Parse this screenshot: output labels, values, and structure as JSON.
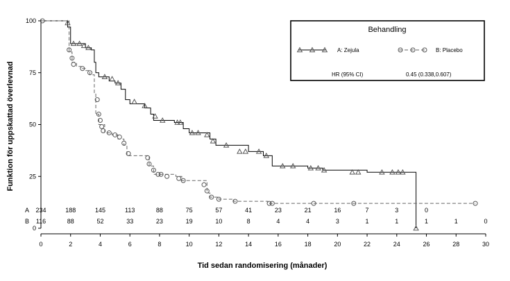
{
  "chart_data": {
    "type": "line",
    "subtype": "kaplan-meier",
    "xlabel": "Tid sedan randomisering (månader)",
    "ylabel": "Funktion för uppskattad överlevnad",
    "xlim": [
      0,
      30
    ],
    "ylim": [
      0,
      100
    ],
    "x_ticks": [
      0,
      2,
      4,
      6,
      8,
      10,
      12,
      14,
      16,
      18,
      20,
      22,
      24,
      26,
      28,
      30
    ],
    "y_ticks": [
      0,
      25,
      50,
      75,
      100
    ],
    "grid": false,
    "legend": {
      "title": "Behandling",
      "position": "top-right",
      "hr_label": "HR (95% CI)",
      "hr_value": "0.45 (0.338,0.607)"
    },
    "colors": {
      "line": "#000000",
      "censor_marker": "#555555",
      "axis": "#000000"
    },
    "series": [
      {
        "name": "A: Zejula",
        "style": "solid",
        "marker": "triangle",
        "x": [
          0,
          1.5,
          1.8,
          2.0,
          2.5,
          3.0,
          3.4,
          3.6,
          3.7,
          3.9,
          4.2,
          4.6,
          5.0,
          5.4,
          5.7,
          6.0,
          6.5,
          7.0,
          7.4,
          7.6,
          8.0,
          9.0,
          9.6,
          10.0,
          11.0,
          11.4,
          11.8,
          13.0,
          14.0,
          15.0,
          15.6,
          16.5,
          18.0,
          19.0,
          22.0,
          25.3,
          25.3
        ],
        "y": [
          100,
          100,
          97,
          89,
          89,
          87,
          86,
          80,
          75,
          73,
          73,
          71,
          70,
          67,
          62,
          60,
          60,
          58,
          55,
          52,
          52,
          51,
          48,
          46,
          46,
          43,
          40,
          40,
          37,
          35,
          30,
          30,
          29,
          28,
          27,
          27,
          0
        ],
        "censored": [
          [
            1.8,
            99
          ],
          [
            2.2,
            89
          ],
          [
            2.6,
            89
          ],
          [
            2.9,
            88
          ],
          [
            3.2,
            87
          ],
          [
            4.3,
            73
          ],
          [
            4.8,
            72
          ],
          [
            5.2,
            70
          ],
          [
            6.3,
            61
          ],
          [
            7.0,
            59
          ],
          [
            7.7,
            54
          ],
          [
            8.2,
            52
          ],
          [
            9.2,
            51
          ],
          [
            9.4,
            51
          ],
          [
            10.2,
            46
          ],
          [
            10.6,
            46
          ],
          [
            11.2,
            45
          ],
          [
            11.6,
            42
          ],
          [
            12.5,
            40
          ],
          [
            13.4,
            37
          ],
          [
            13.8,
            37
          ],
          [
            14.7,
            37
          ],
          [
            15.2,
            35
          ],
          [
            16.3,
            30
          ],
          [
            17.0,
            30
          ],
          [
            18.2,
            29
          ],
          [
            18.7,
            29
          ],
          [
            19.1,
            28
          ],
          [
            21.0,
            27
          ],
          [
            21.4,
            27
          ],
          [
            23.0,
            27
          ],
          [
            23.7,
            27
          ],
          [
            24.1,
            27
          ],
          [
            24.4,
            27
          ],
          [
            25.3,
            0
          ]
        ]
      },
      {
        "name": "B: Placebo",
        "style": "dashed",
        "marker": "circle",
        "x": [
          0,
          1.8,
          1.9,
          2.1,
          2.4,
          2.7,
          3.0,
          3.3,
          3.6,
          3.7,
          3.9,
          4.3,
          4.8,
          5.2,
          5.6,
          5.8,
          7.1,
          7.3,
          7.6,
          9.1,
          9.5,
          11.0,
          11.2,
          11.4,
          12.0,
          13.0,
          15.3,
          29.3
        ],
        "y": [
          100,
          100,
          85,
          80,
          78,
          77,
          76,
          74,
          65,
          55,
          50,
          46,
          45,
          43,
          40,
          35,
          35,
          30,
          26,
          25,
          23,
          23,
          17,
          15,
          14,
          13,
          12,
          12
        ],
        "censored": [
          [
            0.1,
            100
          ],
          [
            1.9,
            86
          ],
          [
            2.1,
            82
          ],
          [
            2.2,
            79
          ],
          [
            2.8,
            77
          ],
          [
            3.3,
            75
          ],
          [
            3.8,
            62
          ],
          [
            3.9,
            55
          ],
          [
            4.0,
            52
          ],
          [
            4.1,
            49
          ],
          [
            4.2,
            47
          ],
          [
            4.6,
            46
          ],
          [
            5.0,
            45
          ],
          [
            5.3,
            44
          ],
          [
            5.6,
            41
          ],
          [
            5.9,
            36
          ],
          [
            7.2,
            34
          ],
          [
            7.3,
            31
          ],
          [
            7.6,
            28
          ],
          [
            7.9,
            26
          ],
          [
            8.1,
            26
          ],
          [
            8.5,
            25
          ],
          [
            9.3,
            24
          ],
          [
            9.6,
            23
          ],
          [
            11.0,
            21
          ],
          [
            11.2,
            18
          ],
          [
            11.5,
            15
          ],
          [
            12.0,
            14
          ],
          [
            13.1,
            13
          ],
          [
            15.4,
            12
          ],
          [
            15.6,
            12
          ],
          [
            18.4,
            12
          ],
          [
            21.1,
            12
          ],
          [
            29.3,
            12
          ]
        ]
      }
    ],
    "risk_table": {
      "rows": [
        {
          "label": "A",
          "x": [
            0,
            2,
            4,
            6,
            8,
            10,
            12,
            14,
            16,
            18,
            20,
            22,
            24,
            26
          ],
          "values": [
            "234",
            "188",
            "145",
            "113",
            "88",
            "75",
            "57",
            "41",
            "23",
            "21",
            "16",
            "7",
            "3",
            "0"
          ]
        },
        {
          "label": "B",
          "x": [
            0,
            2,
            4,
            6,
            8,
            10,
            12,
            14,
            16,
            18,
            20,
            22,
            24,
            26,
            28,
            30
          ],
          "values": [
            "116",
            "88",
            "52",
            "33",
            "23",
            "19",
            "10",
            "8",
            "4",
            "4",
            "3",
            "1",
            "1",
            "1",
            "1",
            "0"
          ]
        }
      ]
    }
  }
}
